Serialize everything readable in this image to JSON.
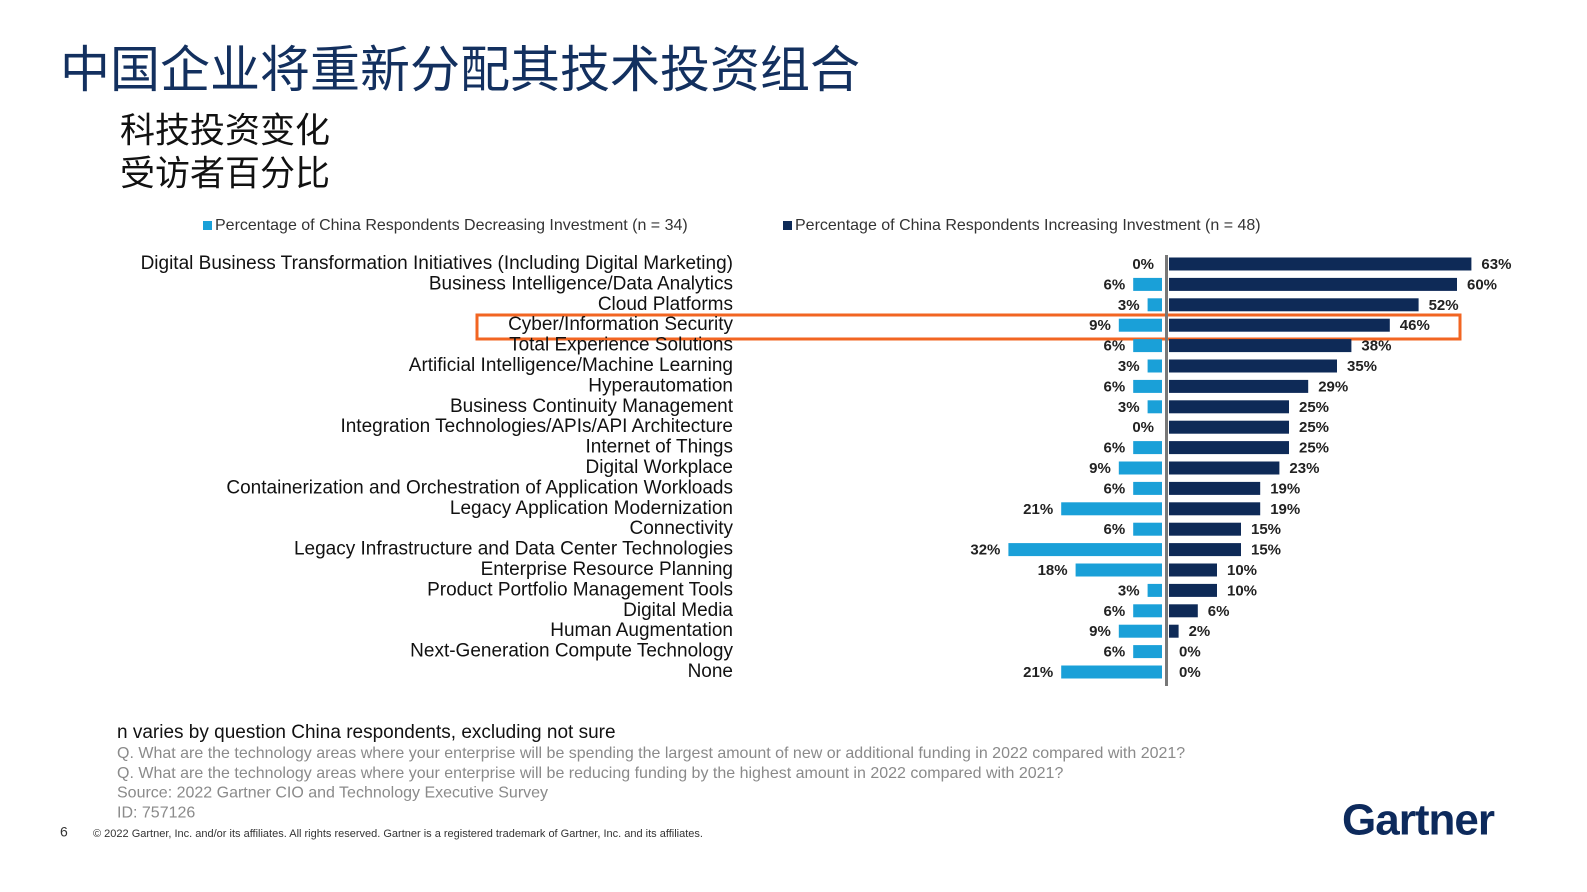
{
  "chart_data": {
    "type": "diverging_bar",
    "title": "中国企业将重新分配其技术投资组合",
    "subtitle": [
      "科技投资变化",
      "受访者百分比"
    ],
    "categories": [
      "Digital Business Transformation Initiatives (Including Digital Marketing)",
      "Business Intelligence/Data Analytics",
      "Cloud Platforms",
      "Cyber/Information Security",
      "Total Experience Solutions",
      "Artificial Intelligence/Machine Learning",
      "Hyperautomation",
      "Business Continuity Management",
      "Integration Technologies/APIs/API Architecture",
      "Internet of Things",
      "Digital Workplace",
      "Containerization and Orchestration of Application Workloads",
      "Legacy Application Modernization",
      "Connectivity",
      "Legacy Infrastructure and Data Center Technologies",
      "Enterprise Resource Planning",
      "Product Portfolio Management Tools",
      "Digital Media",
      "Human Augmentation",
      "Next-Generation Compute Technology",
      "None"
    ],
    "series": [
      {
        "name": "Percentage of China Respondents Decreasing Investment (n = 34)",
        "color": "#1aa0d8",
        "direction": "left",
        "values": [
          0,
          6,
          3,
          9,
          6,
          3,
          6,
          3,
          0,
          6,
          9,
          6,
          21,
          6,
          32,
          18,
          3,
          6,
          9,
          6,
          21
        ],
        "value_labels": [
          "0%",
          "6%",
          "3%",
          "9%",
          "6%",
          "3%",
          "6%",
          "3%",
          "0%",
          "6%",
          "9%",
          "6%",
          "21%",
          "6%",
          "32%",
          "18%",
          "3%",
          "6%",
          "9%",
          "6%",
          "21%"
        ]
      },
      {
        "name": "Percentage of China Respondents Increasing Investment (n = 48)",
        "color": "#0e2a57",
        "direction": "right",
        "values": [
          63,
          60,
          52,
          46,
          38,
          35,
          29,
          25,
          25,
          25,
          23,
          19,
          19,
          15,
          15,
          10,
          10,
          6,
          2,
          0,
          0
        ],
        "value_labels": [
          "63%",
          "60%",
          "52%",
          "46%",
          "38%",
          "35%",
          "29%",
          "25%",
          "25%",
          "25%",
          "23%",
          "19%",
          "19%",
          "15%",
          "15%",
          "10%",
          "10%",
          "6%",
          "2%",
          "0%",
          "0%"
        ]
      }
    ],
    "notes": [
      "n varies by question China respondents, excluding not sure",
      "Q. What are the technology areas where your enterprise will be spending the largest amount of new or additional funding in 2022 compared with 2021?",
      "Q. What are the technology areas where your enterprise will be reducing funding by the highest amount in 2022 compared with 2021?",
      "Source: 2022 Gartner CIO and Technology Executive Survey",
      "ID: 757126"
    ]
  },
  "footer": {
    "page_number": "6",
    "copyright": "© 2022 Gartner, Inc. and/or its affiliates. All rights reserved. Gartner is a registered trademark of Gartner, Inc. and its affiliates.",
    "logo": "Gartner"
  }
}
